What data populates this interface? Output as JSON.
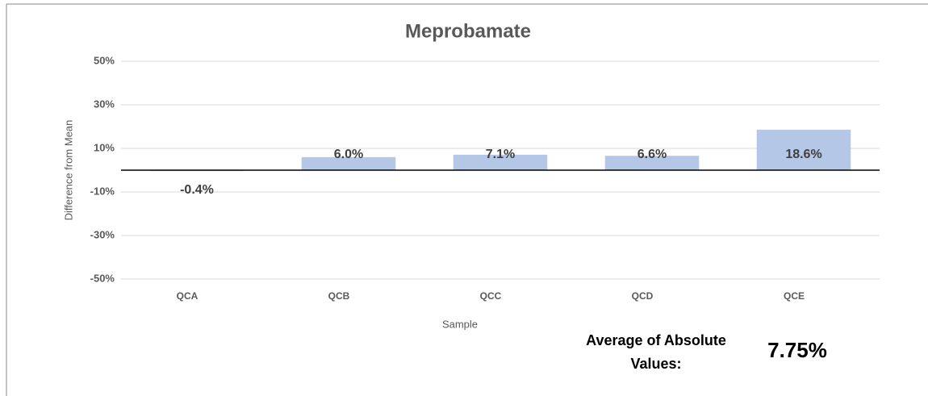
{
  "chart_data": {
    "type": "bar",
    "title": "Meprobamate",
    "x_label": "Sample",
    "y_label": "Difference from Mean",
    "categories": [
      "QCA",
      "QCB",
      "QCC",
      "QCD",
      "QCE"
    ],
    "values": [
      -0.4,
      6.0,
      7.1,
      6.6,
      18.6
    ],
    "value_labels": [
      "-0.4%",
      "6.0%",
      "7.1%",
      "6.6%",
      "18.6%"
    ],
    "color": "#b4c7e7",
    "ylim": [
      -50,
      50
    ],
    "yticks": [
      {
        "value": -50,
        "label": "-50%"
      },
      {
        "value": -30,
        "label": "-30%"
      },
      {
        "value": -10,
        "label": "-10%"
      },
      {
        "value": 10,
        "label": "10%"
      },
      {
        "value": 30,
        "label": "30%"
      },
      {
        "value": 50,
        "label": "50%"
      }
    ],
    "grid": true,
    "annotation": {
      "lines": [
        "Average of Absolute",
        "Values:"
      ],
      "value": "7.75%"
    }
  }
}
